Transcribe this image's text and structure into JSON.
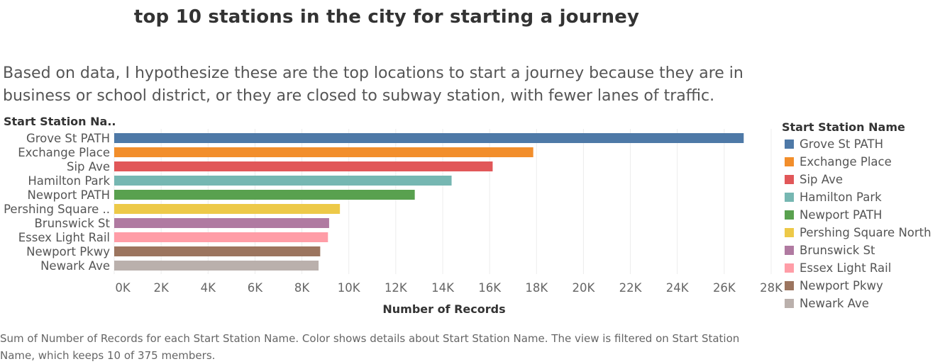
{
  "page": {
    "title": "top 10 stations in the city for starting a journey",
    "subtitle": "Based on data, I hypothesize these are the top locations to start a journey because they are in business or school district, or they are closed to subway station, with fewer lanes of traffic.",
    "footer": "Sum of Number of Records for each Start Station Name.  Color shows details about Start Station Name. The view is filtered on Start Station Name, which keeps 10 of 375 members."
  },
  "chart_data": {
    "type": "bar",
    "orientation": "horizontal",
    "row_header": "Start Station Na..",
    "categories": [
      "Grove St PATH",
      "Exchange Place",
      "Sip Ave",
      "Hamilton Park",
      "Newport PATH",
      "Pershing Square ..",
      "Brunswick St",
      "Essex Light Rail",
      "Newport Pkwy",
      "Newark Ave"
    ],
    "values": [
      26830,
      17860,
      16130,
      14380,
      12810,
      9620,
      9160,
      9110,
      8780,
      8710
    ],
    "colors": [
      "#4e79a7",
      "#f28e2b",
      "#e15759",
      "#76b7b2",
      "#59a14f",
      "#edc948",
      "#b07aa1",
      "#ff9da7",
      "#9c755f",
      "#bab0ac"
    ],
    "xlabel": "Number of Records",
    "xlim": [
      0,
      28000
    ],
    "x_ticks": [
      0,
      2000,
      4000,
      6000,
      8000,
      10000,
      12000,
      14000,
      16000,
      18000,
      20000,
      22000,
      24000,
      26000,
      28000
    ],
    "x_tick_labels": [
      "0K",
      "2K",
      "4K",
      "6K",
      "8K",
      "10K",
      "12K",
      "14K",
      "16K",
      "18K",
      "20K",
      "22K",
      "24K",
      "26K",
      "28K"
    ],
    "grid": true,
    "legend": {
      "title": "Start Station Name",
      "position": "right",
      "items": [
        "Grove St PATH",
        "Exchange Place",
        "Sip Ave",
        "Hamilton Park",
        "Newport PATH",
        "Pershing Square North",
        "Brunswick St",
        "Essex Light Rail",
        "Newport Pkwy",
        "Newark Ave"
      ]
    }
  }
}
